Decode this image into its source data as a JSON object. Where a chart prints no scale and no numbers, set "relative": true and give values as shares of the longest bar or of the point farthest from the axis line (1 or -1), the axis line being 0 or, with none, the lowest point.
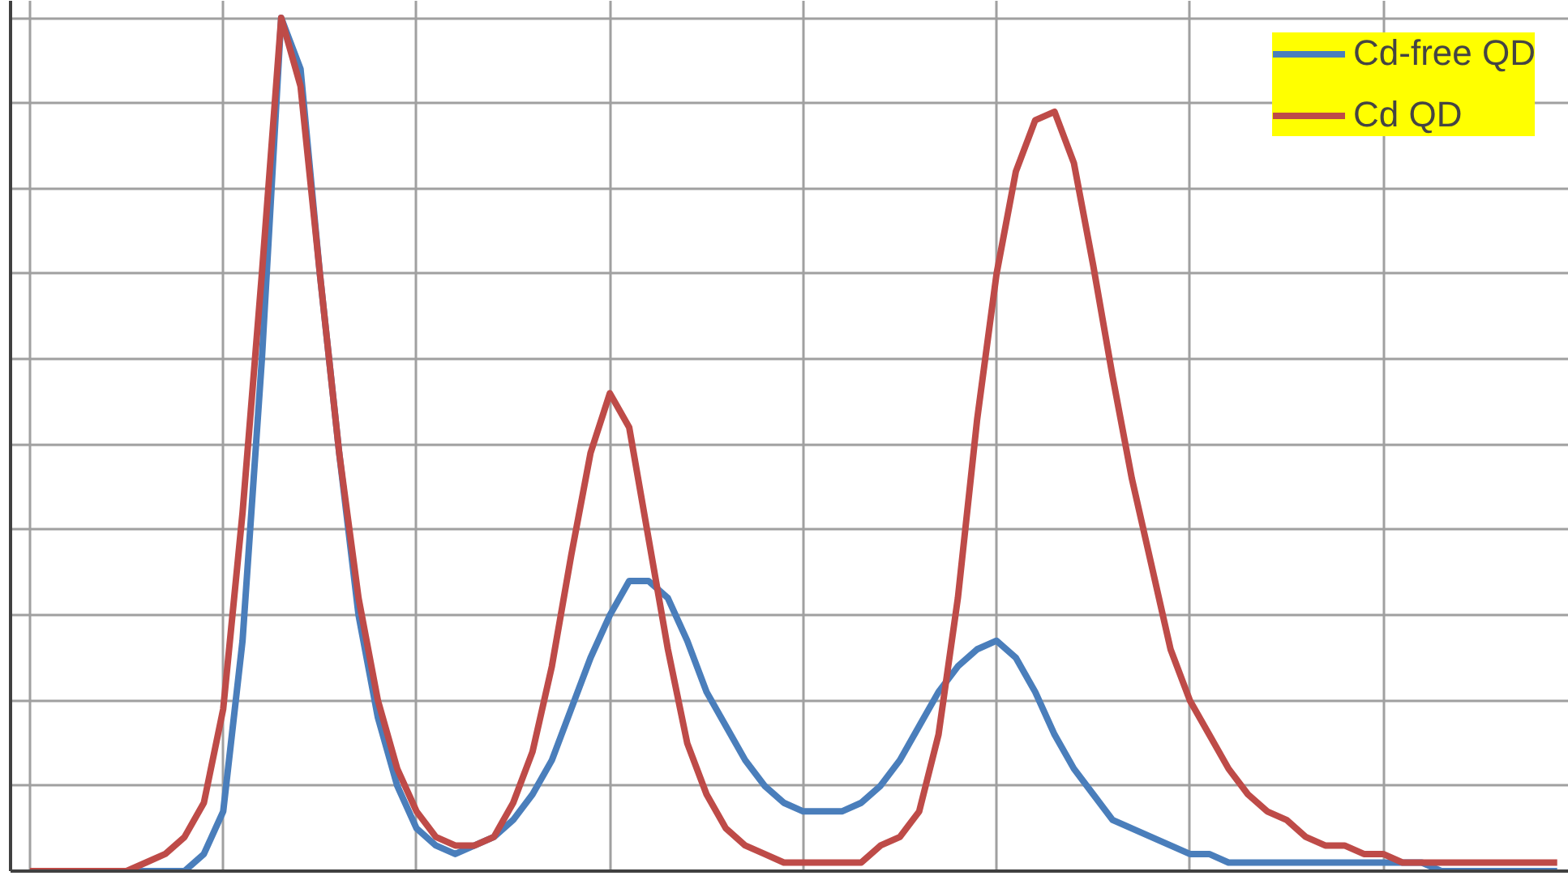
{
  "chart_data": {
    "type": "line",
    "relative": true,
    "grid": true,
    "legend": "top right",
    "marker": "none",
    "line_style": "solid",
    "categories": [
      null,
      null,
      null,
      null,
      null,
      null,
      null,
      null,
      null,
      null,
      null,
      null,
      null,
      null,
      null,
      null,
      null,
      null,
      null,
      null,
      null,
      null,
      null,
      null,
      null,
      null,
      null,
      null,
      null,
      null,
      null,
      null,
      null,
      null,
      null,
      null,
      null,
      null,
      null,
      null,
      null,
      null,
      null,
      null,
      null,
      null,
      null,
      null,
      null,
      null,
      null,
      null,
      null,
      null,
      null,
      null,
      null,
      null,
      null,
      null,
      null,
      null,
      null,
      null,
      null,
      null,
      null,
      null,
      null,
      null,
      null,
      null,
      null,
      null,
      null,
      null,
      null,
      null,
      null,
      null
    ],
    "series": [
      {
        "name": "Cd-free QD",
        "color": "#4a7ebb",
        "values": [
          null,
          null,
          null,
          null,
          0,
          0,
          0,
          0,
          0,
          0.02,
          0.07,
          0.27,
          0.6,
          1.0,
          0.94,
          0.7,
          0.49,
          0.3,
          0.18,
          0.1,
          0.05,
          0.03,
          0.02,
          0.03,
          0.04,
          0.06,
          0.09,
          0.13,
          0.19,
          0.25,
          0.3,
          0.34,
          0.34,
          0.32,
          0.27,
          0.21,
          0.17,
          0.13,
          0.1,
          0.08,
          0.07,
          0.07,
          0.07,
          0.08,
          0.1,
          0.13,
          0.17,
          0.21,
          0.24,
          0.26,
          0.27,
          0.25,
          0.21,
          0.16,
          0.12,
          0.09,
          0.06,
          0.05,
          0.04,
          0.03,
          0.02,
          0.02,
          0.01,
          0.01,
          0.01,
          0.01,
          0.01,
          0.01,
          0.01,
          0.01,
          0.01,
          0.01,
          0.01,
          0,
          0,
          0,
          0,
          0,
          0,
          0
        ]
      },
      {
        "name": "Cd QD",
        "color": "#be4b48",
        "values": [
          0,
          0,
          0,
          0,
          0,
          0,
          0.01,
          0.02,
          0.04,
          0.08,
          0.19,
          0.42,
          0.7,
          1.0,
          0.92,
          0.7,
          0.49,
          0.32,
          0.2,
          0.12,
          0.07,
          0.04,
          0.03,
          0.03,
          0.04,
          0.08,
          0.14,
          0.24,
          0.37,
          0.49,
          0.56,
          0.52,
          0.39,
          0.26,
          0.15,
          0.09,
          0.05,
          0.03,
          0.02,
          0.01,
          0.01,
          0.01,
          0.01,
          0.01,
          0.03,
          0.04,
          0.07,
          0.16,
          0.32,
          0.53,
          0.7,
          0.82,
          0.88,
          0.89,
          0.83,
          0.71,
          0.58,
          0.46,
          0.36,
          0.26,
          0.2,
          0.16,
          0.12,
          0.09,
          0.07,
          0.06,
          0.04,
          0.03,
          0.03,
          0.02,
          0.02,
          0.01,
          0.01,
          0.01,
          0.01,
          0.01,
          0.01,
          0.01,
          0.01,
          0.01
        ]
      }
    ]
  }
}
